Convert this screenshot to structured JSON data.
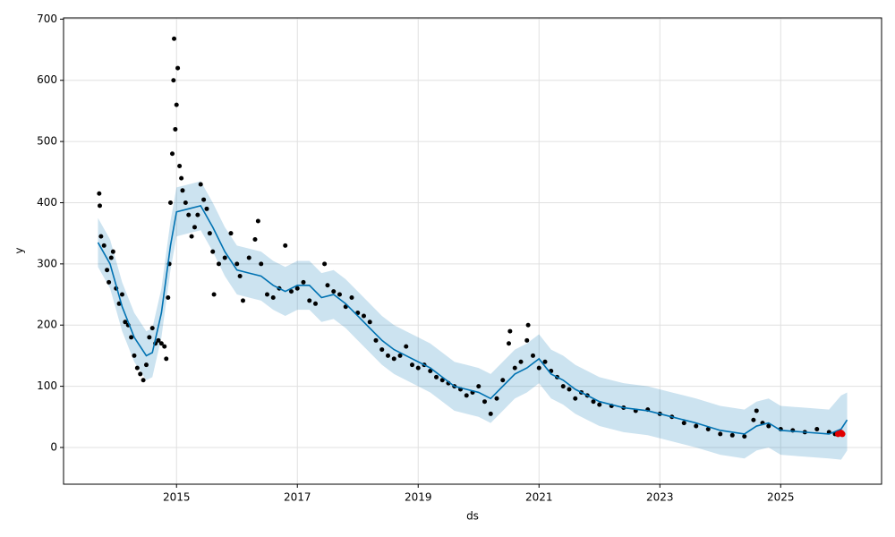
{
  "chart_data": {
    "type": "forecast",
    "x_label": "ds",
    "y_label": "y",
    "xlim": [
      2013.13,
      2026.67
    ],
    "ylim": [
      -60,
      702
    ],
    "xticks": [
      2015,
      2017,
      2019,
      2021,
      2023,
      2025
    ],
    "yticks": [
      0,
      100,
      200,
      300,
      400,
      500,
      600,
      700
    ],
    "grid": true,
    "observed": {
      "color": "#000000",
      "x": [
        2013.72,
        2013.73,
        2013.75,
        2013.8,
        2013.85,
        2013.88,
        2013.92,
        2013.95,
        2014.0,
        2014.05,
        2014.1,
        2014.15,
        2014.2,
        2014.25,
        2014.3,
        2014.35,
        2014.4,
        2014.45,
        2014.5,
        2014.55,
        2014.6,
        2014.65,
        2014.7,
        2014.75,
        2014.8,
        2014.83,
        2014.86,
        2014.88,
        2014.9,
        2014.93,
        2014.95,
        2014.96,
        2014.98,
        2015.0,
        2015.02,
        2015.05,
        2015.08,
        2015.1,
        2015.15,
        2015.2,
        2015.25,
        2015.3,
        2015.35,
        2015.4,
        2015.45,
        2015.5,
        2015.55,
        2015.6,
        2015.62,
        2015.7,
        2015.8,
        2015.9,
        2016.0,
        2016.05,
        2016.1,
        2016.2,
        2016.3,
        2016.35,
        2016.4,
        2016.5,
        2016.6,
        2016.7,
        2016.8,
        2016.9,
        2017.0,
        2017.1,
        2017.2,
        2017.3,
        2017.45,
        2017.5,
        2017.6,
        2017.7,
        2017.8,
        2017.9,
        2018.0,
        2018.1,
        2018.2,
        2018.3,
        2018.4,
        2018.5,
        2018.6,
        2018.7,
        2018.8,
        2018.9,
        2019.0,
        2019.1,
        2019.2,
        2019.3,
        2019.4,
        2019.5,
        2019.6,
        2019.7,
        2019.8,
        2019.9,
        2020.0,
        2020.1,
        2020.2,
        2020.3,
        2020.4,
        2020.5,
        2020.52,
        2020.6,
        2020.7,
        2020.8,
        2020.82,
        2020.9,
        2021.0,
        2021.1,
        2021.2,
        2021.3,
        2021.4,
        2021.5,
        2021.6,
        2021.7,
        2021.8,
        2021.9,
        2022.0,
        2022.2,
        2022.4,
        2022.6,
        2022.8,
        2023.0,
        2023.2,
        2023.4,
        2023.6,
        2023.8,
        2024.0,
        2024.2,
        2024.4,
        2024.55,
        2024.6,
        2024.7,
        2024.8,
        2025.0,
        2025.2,
        2025.4,
        2025.6,
        2025.8,
        2025.9
      ],
      "values": [
        415,
        395,
        345,
        330,
        290,
        270,
        310,
        320,
        260,
        235,
        250,
        205,
        200,
        180,
        150,
        130,
        120,
        110,
        135,
        180,
        195,
        170,
        175,
        170,
        165,
        145,
        245,
        300,
        400,
        480,
        600,
        668,
        520,
        560,
        620,
        460,
        440,
        420,
        400,
        380,
        345,
        360,
        380,
        430,
        405,
        390,
        350,
        320,
        250,
        300,
        310,
        350,
        300,
        280,
        240,
        310,
        340,
        370,
        300,
        250,
        245,
        260,
        330,
        255,
        260,
        270,
        240,
        235,
        300,
        265,
        255,
        250,
        230,
        245,
        220,
        215,
        205,
        175,
        160,
        150,
        145,
        150,
        165,
        135,
        130,
        135,
        125,
        115,
        110,
        105,
        100,
        95,
        85,
        90,
        100,
        75,
        55,
        80,
        110,
        170,
        190,
        130,
        140,
        175,
        200,
        150,
        130,
        140,
        125,
        115,
        100,
        95,
        80,
        90,
        85,
        75,
        70,
        68,
        65,
        60,
        62,
        55,
        50,
        40,
        35,
        30,
        22,
        20,
        18,
        45,
        60,
        40,
        35,
        30,
        28,
        25,
        30,
        25,
        22
      ]
    },
    "highlight": {
      "color": "#e00000",
      "x": [
        2025.95,
        2026.0,
        2026.02
      ],
      "values": [
        22,
        24,
        22
      ]
    },
    "forecast": {
      "color": "#0072B2",
      "band_color": "#0072B2",
      "x": [
        2013.7,
        2013.9,
        2014.1,
        2014.3,
        2014.5,
        2014.6,
        2014.75,
        2014.9,
        2015.0,
        2015.2,
        2015.4,
        2015.6,
        2015.8,
        2016.0,
        2016.2,
        2016.4,
        2016.6,
        2016.8,
        2017.0,
        2017.2,
        2017.4,
        2017.6,
        2017.8,
        2018.0,
        2018.2,
        2018.4,
        2018.6,
        2018.8,
        2019.0,
        2019.2,
        2019.4,
        2019.6,
        2019.8,
        2020.0,
        2020.2,
        2020.4,
        2020.6,
        2020.8,
        2021.0,
        2021.2,
        2021.4,
        2021.6,
        2021.8,
        2022.0,
        2022.4,
        2022.8,
        2023.2,
        2023.6,
        2024.0,
        2024.4,
        2024.6,
        2024.8,
        2025.0,
        2025.4,
        2025.8,
        2026.0,
        2026.1
      ],
      "values": [
        335,
        300,
        230,
        180,
        150,
        155,
        220,
        330,
        385,
        390,
        395,
        360,
        320,
        290,
        285,
        280,
        265,
        255,
        265,
        265,
        245,
        250,
        235,
        215,
        195,
        175,
        160,
        150,
        140,
        130,
        115,
        100,
        95,
        90,
        80,
        100,
        120,
        130,
        145,
        120,
        110,
        95,
        85,
        75,
        65,
        60,
        50,
        40,
        28,
        22,
        35,
        40,
        28,
        25,
        22,
        30,
        45
      ],
      "upper": [
        375,
        340,
        270,
        220,
        190,
        195,
        260,
        370,
        425,
        430,
        435,
        400,
        360,
        330,
        325,
        320,
        305,
        295,
        305,
        305,
        285,
        290,
        275,
        255,
        235,
        215,
        200,
        190,
        180,
        170,
        155,
        140,
        135,
        130,
        120,
        140,
        160,
        170,
        185,
        160,
        150,
        135,
        125,
        115,
        105,
        100,
        90,
        80,
        68,
        62,
        75,
        80,
        68,
        65,
        62,
        85,
        90
      ],
      "lower": [
        295,
        260,
        190,
        140,
        110,
        115,
        180,
        290,
        345,
        350,
        355,
        320,
        280,
        250,
        245,
        240,
        225,
        215,
        225,
        225,
        205,
        210,
        195,
        175,
        155,
        135,
        120,
        110,
        100,
        90,
        75,
        60,
        55,
        50,
        40,
        60,
        80,
        90,
        105,
        80,
        70,
        55,
        45,
        35,
        25,
        20,
        10,
        0,
        -12,
        -18,
        -5,
        0,
        -12,
        -15,
        -18,
        -20,
        -5
      ]
    }
  }
}
